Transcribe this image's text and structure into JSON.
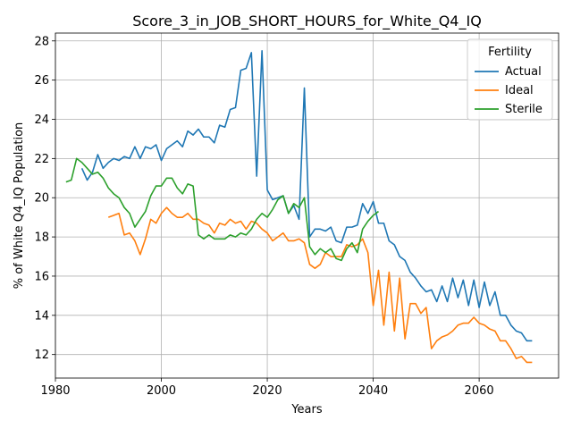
{
  "chart_data": {
    "type": "line",
    "title": "Score_3_in_JOB_SHORT_HOURS_for_White_Q4_IQ",
    "xlabel": "Years",
    "ylabel": "% of White Q4_IQ Population",
    "xlim": [
      1980,
      2075
    ],
    "ylim": [
      10.8,
      28.4
    ],
    "xticks": [
      1980,
      2000,
      2020,
      2040,
      2060
    ],
    "yticks": [
      12,
      14,
      16,
      18,
      20,
      22,
      24,
      26,
      28
    ],
    "grid": true,
    "legend": {
      "title": "Fertility",
      "placement": "top-right"
    },
    "series": [
      {
        "name": "Actual",
        "color": "#1f77b4",
        "points": [
          [
            1985,
            21.5
          ],
          [
            1986,
            20.9
          ],
          [
            1987,
            21.3
          ],
          [
            1988,
            22.2
          ],
          [
            1989,
            21.5
          ],
          [
            1990,
            21.8
          ],
          [
            1991,
            22.0
          ],
          [
            1992,
            21.9
          ],
          [
            1993,
            22.1
          ],
          [
            1994,
            22.0
          ],
          [
            1995,
            22.6
          ],
          [
            1996,
            22.0
          ],
          [
            1997,
            22.6
          ],
          [
            1998,
            22.5
          ],
          [
            1999,
            22.7
          ],
          [
            2000,
            21.9
          ],
          [
            2001,
            22.5
          ],
          [
            2002,
            22.7
          ],
          [
            2003,
            22.9
          ],
          [
            2004,
            22.6
          ],
          [
            2005,
            23.4
          ],
          [
            2006,
            23.2
          ],
          [
            2007,
            23.5
          ],
          [
            2008,
            23.1
          ],
          [
            2009,
            23.1
          ],
          [
            2010,
            22.8
          ],
          [
            2011,
            23.7
          ],
          [
            2012,
            23.6
          ],
          [
            2013,
            24.5
          ],
          [
            2014,
            24.6
          ],
          [
            2015,
            26.5
          ],
          [
            2016,
            26.6
          ],
          [
            2017,
            27.4
          ],
          [
            2018,
            21.1
          ],
          [
            2019,
            27.5
          ],
          [
            2020,
            20.4
          ],
          [
            2021,
            19.9
          ],
          [
            2022,
            20.0
          ],
          [
            2023,
            20.1
          ],
          [
            2024,
            19.2
          ],
          [
            2025,
            19.6
          ],
          [
            2026,
            18.9
          ],
          [
            2027,
            25.6
          ],
          [
            2028,
            18.0
          ],
          [
            2029,
            18.4
          ],
          [
            2030,
            18.4
          ],
          [
            2031,
            18.3
          ],
          [
            2032,
            18.5
          ],
          [
            2033,
            17.8
          ],
          [
            2034,
            17.7
          ],
          [
            2035,
            18.5
          ],
          [
            2036,
            18.5
          ],
          [
            2037,
            18.6
          ],
          [
            2038,
            19.7
          ],
          [
            2039,
            19.2
          ],
          [
            2040,
            19.8
          ],
          [
            2041,
            18.7
          ],
          [
            2042,
            18.7
          ],
          [
            2043,
            17.8
          ],
          [
            2044,
            17.6
          ],
          [
            2045,
            17.0
          ],
          [
            2046,
            16.8
          ],
          [
            2047,
            16.2
          ],
          [
            2048,
            15.9
          ],
          [
            2049,
            15.5
          ],
          [
            2050,
            15.2
          ],
          [
            2051,
            15.3
          ],
          [
            2052,
            14.7
          ],
          [
            2053,
            15.5
          ],
          [
            2054,
            14.7
          ],
          [
            2055,
            15.9
          ],
          [
            2056,
            14.9
          ],
          [
            2057,
            15.8
          ],
          [
            2058,
            14.5
          ],
          [
            2059,
            15.8
          ],
          [
            2060,
            14.4
          ],
          [
            2061,
            15.7
          ],
          [
            2062,
            14.5
          ],
          [
            2063,
            15.2
          ],
          [
            2064,
            14.0
          ],
          [
            2065,
            14.0
          ],
          [
            2066,
            13.5
          ],
          [
            2067,
            13.2
          ],
          [
            2068,
            13.1
          ],
          [
            2069,
            12.7
          ],
          [
            2070,
            12.7
          ]
        ]
      },
      {
        "name": "Ideal",
        "color": "#ff7f0e",
        "points": [
          [
            1990,
            19.0
          ],
          [
            1991,
            19.1
          ],
          [
            1992,
            19.2
          ],
          [
            1993,
            18.1
          ],
          [
            1994,
            18.2
          ],
          [
            1995,
            17.8
          ],
          [
            1996,
            17.1
          ],
          [
            1997,
            17.9
          ],
          [
            1998,
            18.9
          ],
          [
            1999,
            18.7
          ],
          [
            2000,
            19.2
          ],
          [
            2001,
            19.5
          ],
          [
            2002,
            19.2
          ],
          [
            2003,
            19.0
          ],
          [
            2004,
            19.0
          ],
          [
            2005,
            19.2
          ],
          [
            2006,
            18.9
          ],
          [
            2007,
            18.9
          ],
          [
            2008,
            18.7
          ],
          [
            2009,
            18.6
          ],
          [
            2010,
            18.2
          ],
          [
            2011,
            18.7
          ],
          [
            2012,
            18.6
          ],
          [
            2013,
            18.9
          ],
          [
            2014,
            18.7
          ],
          [
            2015,
            18.8
          ],
          [
            2016,
            18.4
          ],
          [
            2017,
            18.8
          ],
          [
            2018,
            18.7
          ],
          [
            2019,
            18.4
          ],
          [
            2020,
            18.2
          ],
          [
            2021,
            17.8
          ],
          [
            2022,
            18.0
          ],
          [
            2023,
            18.2
          ],
          [
            2024,
            17.8
          ],
          [
            2025,
            17.8
          ],
          [
            2026,
            17.9
          ],
          [
            2027,
            17.7
          ],
          [
            2028,
            16.6
          ],
          [
            2029,
            16.4
          ],
          [
            2030,
            16.6
          ],
          [
            2031,
            17.2
          ],
          [
            2032,
            17.0
          ],
          [
            2033,
            17.0
          ],
          [
            2034,
            17.0
          ],
          [
            2035,
            17.6
          ],
          [
            2036,
            17.5
          ],
          [
            2037,
            17.6
          ],
          [
            2038,
            17.9
          ],
          [
            2039,
            17.2
          ],
          [
            2040,
            14.5
          ],
          [
            2041,
            16.3
          ],
          [
            2042,
            13.5
          ],
          [
            2043,
            16.2
          ],
          [
            2044,
            13.2
          ],
          [
            2045,
            15.9
          ],
          [
            2046,
            12.8
          ],
          [
            2047,
            14.6
          ],
          [
            2048,
            14.6
          ],
          [
            2049,
            14.1
          ],
          [
            2050,
            14.4
          ],
          [
            2051,
            12.3
          ],
          [
            2052,
            12.7
          ],
          [
            2053,
            12.9
          ],
          [
            2054,
            13.0
          ],
          [
            2055,
            13.2
          ],
          [
            2056,
            13.5
          ],
          [
            2057,
            13.6
          ],
          [
            2058,
            13.6
          ],
          [
            2059,
            13.9
          ],
          [
            2060,
            13.6
          ],
          [
            2061,
            13.5
          ],
          [
            2062,
            13.3
          ],
          [
            2063,
            13.2
          ],
          [
            2064,
            12.7
          ],
          [
            2065,
            12.7
          ],
          [
            2066,
            12.3
          ],
          [
            2067,
            11.8
          ],
          [
            2068,
            11.9
          ],
          [
            2069,
            11.6
          ],
          [
            2070,
            11.6
          ]
        ]
      },
      {
        "name": "Sterile",
        "color": "#2ca02c",
        "points": [
          [
            1982,
            20.8
          ],
          [
            1983,
            20.9
          ],
          [
            1984,
            22.0
          ],
          [
            1985,
            21.8
          ],
          [
            1986,
            21.5
          ],
          [
            1987,
            21.2
          ],
          [
            1988,
            21.3
          ],
          [
            1989,
            21.0
          ],
          [
            1990,
            20.5
          ],
          [
            1991,
            20.2
          ],
          [
            1992,
            20.0
          ],
          [
            1993,
            19.5
          ],
          [
            1994,
            19.2
          ],
          [
            1995,
            18.5
          ],
          [
            1996,
            18.9
          ],
          [
            1997,
            19.3
          ],
          [
            1998,
            20.1
          ],
          [
            1999,
            20.6
          ],
          [
            2000,
            20.6
          ],
          [
            2001,
            21.0
          ],
          [
            2002,
            21.0
          ],
          [
            2003,
            20.5
          ],
          [
            2004,
            20.2
          ],
          [
            2005,
            20.7
          ],
          [
            2006,
            20.6
          ],
          [
            2007,
            18.1
          ],
          [
            2008,
            17.9
          ],
          [
            2009,
            18.1
          ],
          [
            2010,
            17.9
          ],
          [
            2011,
            17.9
          ],
          [
            2012,
            17.9
          ],
          [
            2013,
            18.1
          ],
          [
            2014,
            18.0
          ],
          [
            2015,
            18.2
          ],
          [
            2016,
            18.1
          ],
          [
            2017,
            18.4
          ],
          [
            2018,
            18.9
          ],
          [
            2019,
            19.2
          ],
          [
            2020,
            19.0
          ],
          [
            2021,
            19.4
          ],
          [
            2022,
            19.9
          ],
          [
            2023,
            20.1
          ],
          [
            2024,
            19.2
          ],
          [
            2025,
            19.7
          ],
          [
            2026,
            19.5
          ],
          [
            2027,
            20.0
          ],
          [
            2028,
            17.5
          ],
          [
            2029,
            17.1
          ],
          [
            2030,
            17.4
          ],
          [
            2031,
            17.2
          ],
          [
            2032,
            17.4
          ],
          [
            2033,
            16.9
          ],
          [
            2034,
            16.8
          ],
          [
            2035,
            17.4
          ],
          [
            2036,
            17.7
          ],
          [
            2037,
            17.2
          ],
          [
            2038,
            18.4
          ],
          [
            2039,
            18.8
          ],
          [
            2040,
            19.1
          ],
          [
            2041,
            19.3
          ]
        ]
      }
    ]
  }
}
